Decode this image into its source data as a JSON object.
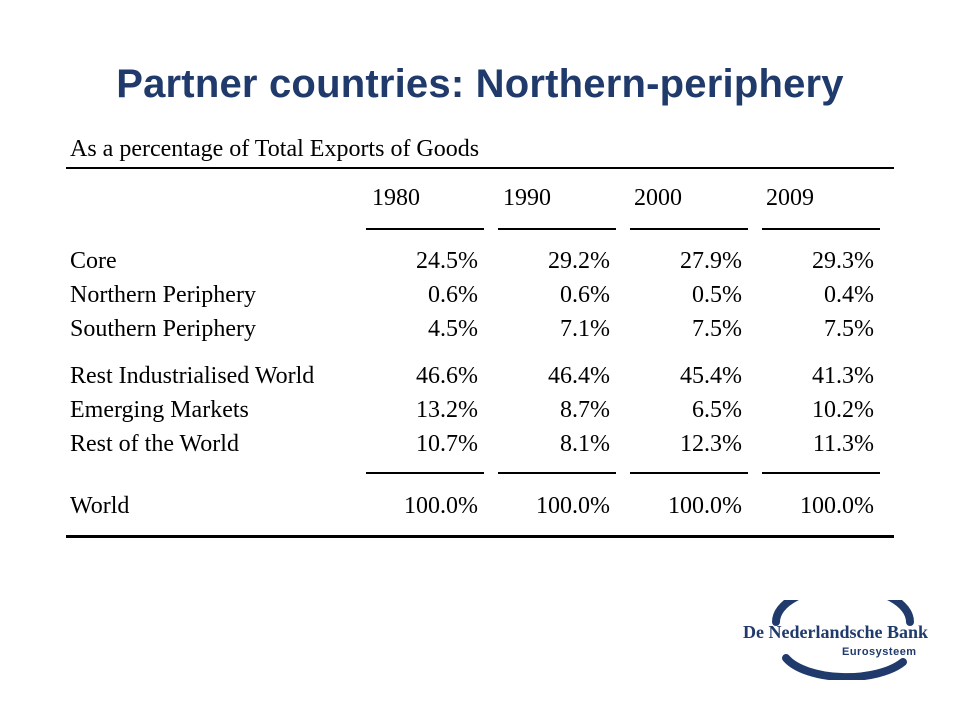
{
  "title": "Partner countries: Northern-periphery",
  "table": {
    "caption": "As a percentage of Total Exports of Goods",
    "years": [
      "1980",
      "1990",
      "2000",
      "2009"
    ],
    "rows": [
      {
        "label": "Core",
        "values": [
          "24.5%",
          "29.2%",
          "27.9%",
          "29.3%"
        ]
      },
      {
        "label": "Northern Periphery",
        "values": [
          "0.6%",
          "0.6%",
          "0.5%",
          "0.4%"
        ]
      },
      {
        "label": "Southern Periphery",
        "values": [
          "4.5%",
          "7.1%",
          "7.5%",
          "7.5%"
        ]
      },
      {
        "label": "Rest Industrialised World",
        "values": [
          "46.6%",
          "46.4%",
          "45.4%",
          "41.3%"
        ]
      },
      {
        "label": "Emerging Markets",
        "values": [
          "13.2%",
          "8.7%",
          "6.5%",
          "10.2%"
        ]
      },
      {
        "label": "Rest of the World",
        "values": [
          "10.7%",
          "8.1%",
          "12.3%",
          "11.3%"
        ]
      }
    ],
    "total": {
      "label": "World",
      "values": [
        "100.0%",
        "100.0%",
        "100.0%",
        "100.0%"
      ]
    }
  },
  "logo": {
    "name": "De Nederlandsche Bank",
    "subtitle": "Eurosysteem",
    "color": "#1f3a6b"
  }
}
